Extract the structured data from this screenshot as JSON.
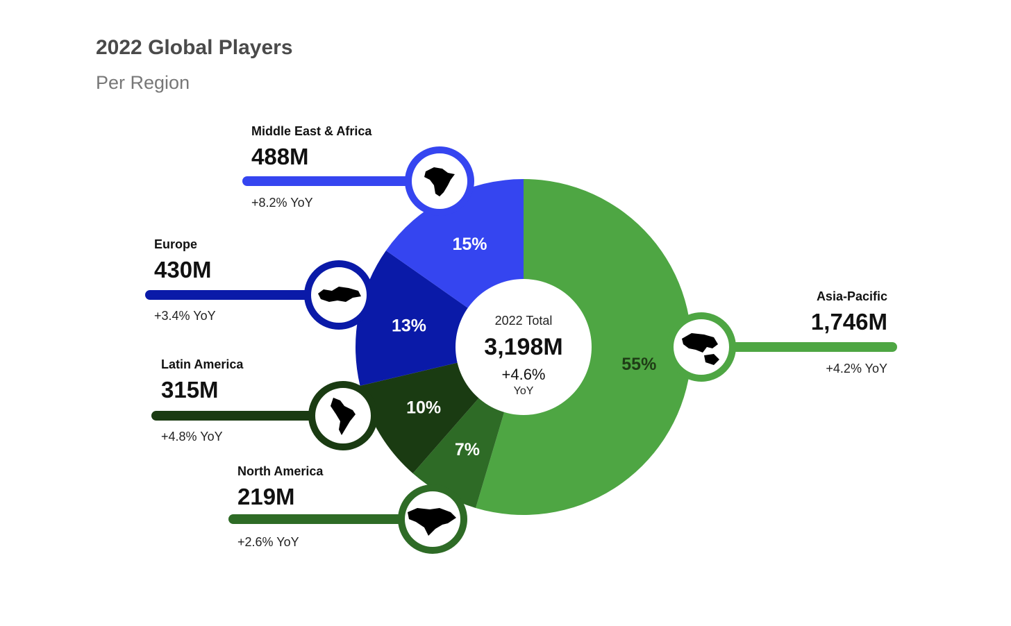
{
  "header": {
    "title": "2022 Global Players",
    "subtitle": "Per Region"
  },
  "center": {
    "label": "2022 Total",
    "value": "3,198M",
    "yoy": "+4.6%",
    "yoy_unit": "YoY"
  },
  "chart_data": {
    "type": "pie",
    "title": "2022 Global Players",
    "subtitle": "Per Region",
    "total": 3198,
    "total_label": "3,198M",
    "total_yoy": "+4.6%",
    "slices": [
      {
        "name": "Asia-Pacific",
        "value": 1746,
        "value_label": "1,746M",
        "percent": 55,
        "percent_label": "55%",
        "yoy": "+4.2% YoY",
        "color": "#4ea643",
        "label_color": "#1f3d16",
        "icon": "asia-pacific-map-icon"
      },
      {
        "name": "North America",
        "value": 219,
        "value_label": "219M",
        "percent": 7,
        "percent_label": "7%",
        "yoy": "+2.6% YoY",
        "color": "#2e6b26",
        "label_color": "#ffffff",
        "icon": "north-america-map-icon"
      },
      {
        "name": "Latin America",
        "value": 315,
        "value_label": "315M",
        "percent": 10,
        "percent_label": "10%",
        "yoy": "+4.8% YoY",
        "color": "#1a3b12",
        "label_color": "#ffffff",
        "icon": "latin-america-map-icon"
      },
      {
        "name": "Europe",
        "value": 430,
        "value_label": "430M",
        "percent": 13,
        "percent_label": "13%",
        "yoy": "+3.4% YoY",
        "color": "#0a1aa8",
        "label_color": "#ffffff",
        "icon": "europe-map-icon"
      },
      {
        "name": "Middle East & Africa",
        "value": 488,
        "value_label": "488M",
        "percent": 15,
        "percent_label": "15%",
        "yoy": "+8.2% YoY",
        "color": "#3545f0",
        "label_color": "#ffffff",
        "icon": "africa-map-icon"
      }
    ]
  }
}
